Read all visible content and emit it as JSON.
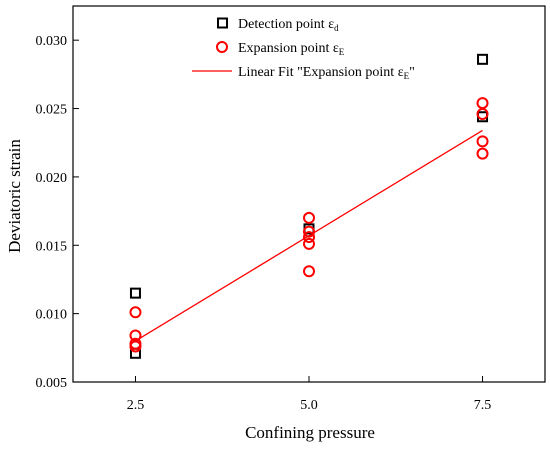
{
  "chart_data": {
    "type": "scatter",
    "xlabel": "Confining pressure",
    "ylabel": "Deviatoric strain",
    "xlim": [
      1.6,
      8.4
    ],
    "ylim": [
      0.005,
      0.0325
    ],
    "x_ticks": [
      2.5,
      5.0,
      7.5
    ],
    "x_tick_labels": [
      "2.5",
      "5.0",
      "7.5"
    ],
    "y_ticks": [
      0.005,
      0.01,
      0.015,
      0.02,
      0.025,
      0.03
    ],
    "y_tick_labels": [
      "0.005",
      "0.010",
      "0.015",
      "0.020",
      "0.025",
      "0.030"
    ],
    "legend_position": "top-right",
    "series": [
      {
        "name": "Detection point ε",
        "name_sub": "d",
        "marker": "square",
        "color": "#000000",
        "points": [
          {
            "x": 2.5,
            "y": 0.0115
          },
          {
            "x": 2.5,
            "y": 0.0071
          },
          {
            "x": 5.0,
            "y": 0.0162
          },
          {
            "x": 7.5,
            "y": 0.0286
          },
          {
            "x": 7.5,
            "y": 0.0244
          }
        ]
      },
      {
        "name": "Expansion point ε",
        "name_sub": "E",
        "marker": "circle",
        "color": "#ff0000",
        "points": [
          {
            "x": 2.5,
            "y": 0.0101
          },
          {
            "x": 2.5,
            "y": 0.0084
          },
          {
            "x": 2.5,
            "y": 0.0078
          },
          {
            "x": 2.5,
            "y": 0.0076
          },
          {
            "x": 5.0,
            "y": 0.017
          },
          {
            "x": 5.0,
            "y": 0.016
          },
          {
            "x": 5.0,
            "y": 0.0156
          },
          {
            "x": 5.0,
            "y": 0.0151
          },
          {
            "x": 5.0,
            "y": 0.0131
          },
          {
            "x": 7.5,
            "y": 0.0254
          },
          {
            "x": 7.5,
            "y": 0.0246
          },
          {
            "x": 7.5,
            "y": 0.0226
          },
          {
            "x": 7.5,
            "y": 0.0217
          }
        ]
      },
      {
        "name": "Linear Fit \"Expansion point ε",
        "name_sub": "E",
        "name_tail": "\"",
        "marker": "line",
        "color": "#ff0000",
        "points": [
          {
            "x": 2.5,
            "y": 0.008
          },
          {
            "x": 7.5,
            "y": 0.0234
          }
        ]
      }
    ]
  }
}
